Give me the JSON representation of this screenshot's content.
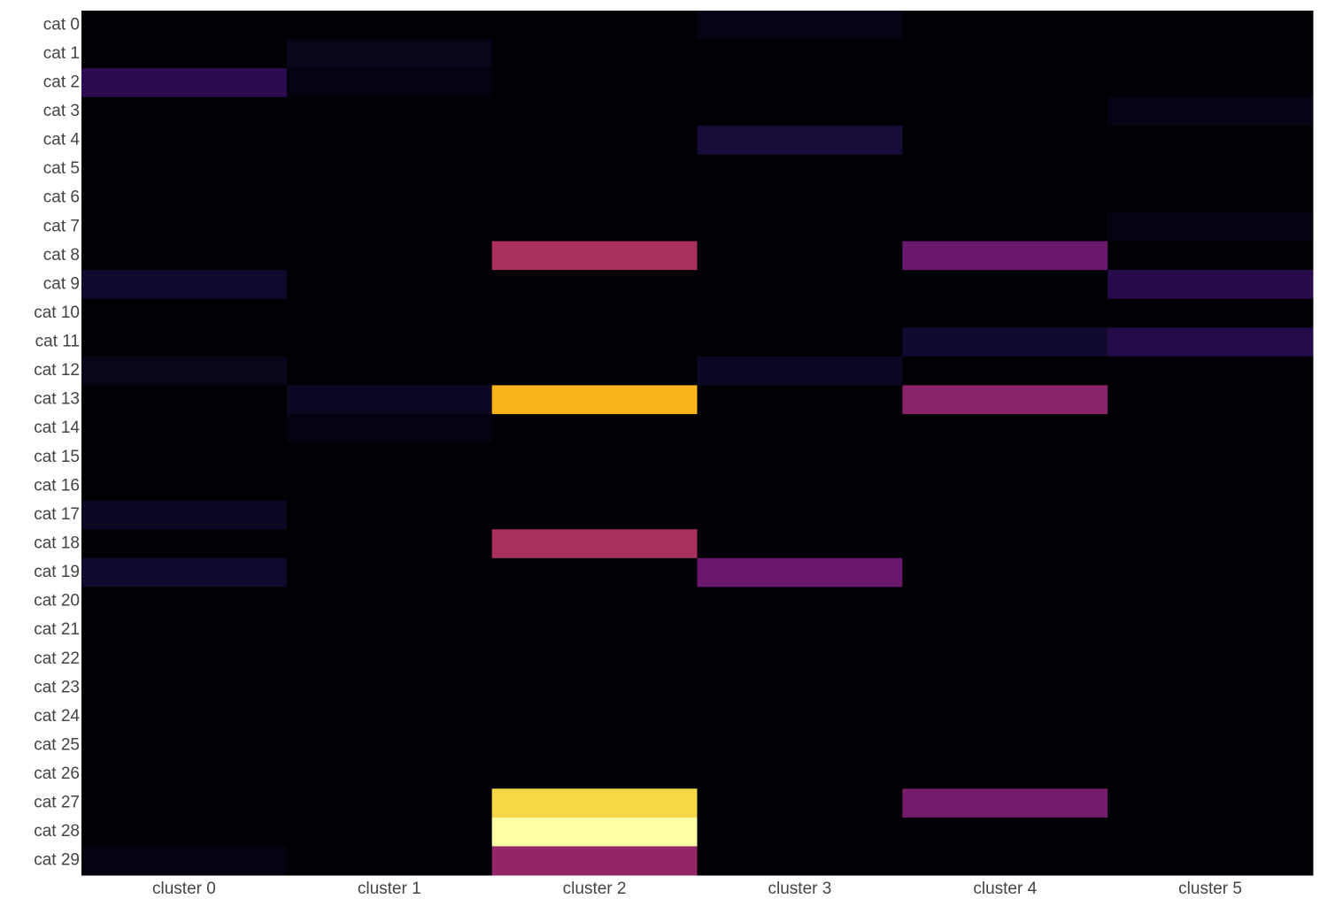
{
  "chart_data": {
    "type": "heatmap",
    "x": [
      "cluster 0",
      "cluster 1",
      "cluster 2",
      "cluster 3",
      "cluster 4",
      "cluster 5"
    ],
    "y": [
      "cat 0",
      "cat 1",
      "cat 2",
      "cat 3",
      "cat 4",
      "cat 5",
      "cat 6",
      "cat 7",
      "cat 8",
      "cat 9",
      "cat 10",
      "cat 11",
      "cat 12",
      "cat 13",
      "cat 14",
      "cat 15",
      "cat 16",
      "cat 17",
      "cat 18",
      "cat 19",
      "cat 20",
      "cat 21",
      "cat 22",
      "cat 23",
      "cat 24",
      "cat 25",
      "cat 26",
      "cat 27",
      "cat 28",
      "cat 29"
    ],
    "z": [
      [
        0,
        0,
        0,
        0.03,
        0,
        0
      ],
      [
        0,
        0.04,
        0,
        0,
        0,
        0
      ],
      [
        0.15,
        0.02,
        0,
        0,
        0,
        0
      ],
      [
        0,
        0,
        0,
        0,
        0,
        0.03
      ],
      [
        0,
        0,
        0,
        0.1,
        0,
        0
      ],
      [
        0,
        0,
        0,
        0,
        0,
        0
      ],
      [
        0,
        0,
        0,
        0,
        0,
        0
      ],
      [
        0,
        0,
        0,
        0,
        0,
        0.02
      ],
      [
        0,
        0,
        0.45,
        0,
        0.3,
        0
      ],
      [
        0.08,
        0,
        0,
        0,
        0,
        0.14
      ],
      [
        0,
        0,
        0,
        0,
        0,
        0
      ],
      [
        0,
        0,
        0,
        0,
        0.08,
        0.13
      ],
      [
        0.04,
        0,
        0,
        0.06,
        0,
        0
      ],
      [
        0,
        0.06,
        0.83,
        0,
        0.38,
        0
      ],
      [
        0,
        0.02,
        0,
        0,
        0,
        0
      ],
      [
        0,
        0,
        0,
        0,
        0,
        0
      ],
      [
        0,
        0,
        0,
        0,
        0,
        0
      ],
      [
        0.06,
        0,
        0,
        0,
        0,
        0
      ],
      [
        0,
        0,
        0.45,
        0,
        0,
        0
      ],
      [
        0.08,
        0,
        0,
        0.3,
        0,
        0
      ],
      [
        0,
        0,
        0,
        0,
        0,
        0
      ],
      [
        0,
        0,
        0,
        0,
        0,
        0
      ],
      [
        0,
        0,
        0,
        0,
        0,
        0
      ],
      [
        0,
        0,
        0,
        0,
        0,
        0
      ],
      [
        0,
        0,
        0,
        0,
        0,
        0
      ],
      [
        0,
        0,
        0,
        0,
        0,
        0
      ],
      [
        0,
        0,
        0,
        0,
        0,
        0
      ],
      [
        0,
        0,
        0.9,
        0,
        0.33,
        0
      ],
      [
        0,
        0,
        1,
        0,
        0,
        0
      ],
      [
        0.02,
        0,
        0.4,
        0,
        0,
        0
      ]
    ],
    "zlim": [
      0,
      1
    ],
    "colorscale": [
      "#000004",
      "#160b39",
      "#420a68",
      "#6a176e",
      "#932667",
      "#bc3754",
      "#dd513a",
      "#f37819",
      "#fca50a",
      "#f6d746",
      "#fcffa4"
    ]
  }
}
